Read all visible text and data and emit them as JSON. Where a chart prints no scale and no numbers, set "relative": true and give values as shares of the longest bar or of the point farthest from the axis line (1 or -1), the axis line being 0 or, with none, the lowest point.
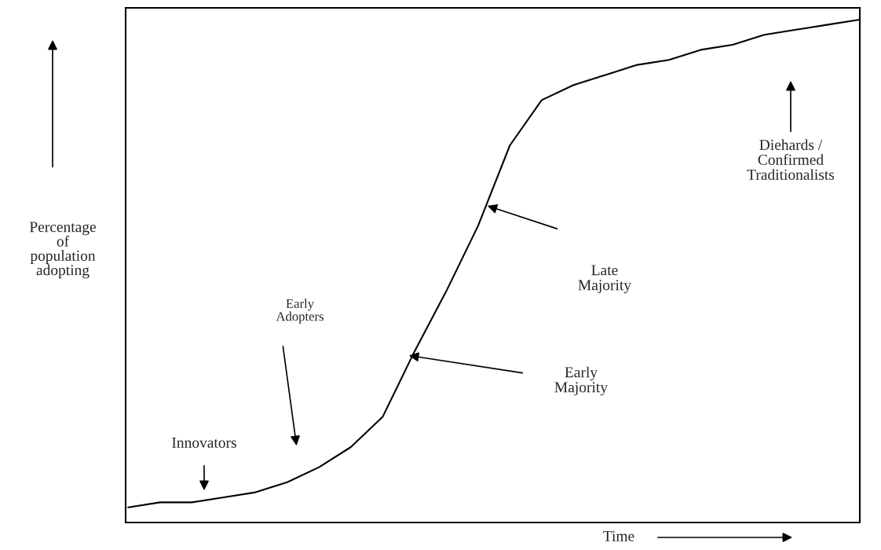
{
  "chart_data": {
    "type": "line",
    "relative": true,
    "xlabel": "Time",
    "ylabel": "Percentage\nof\npopulation\nadopting",
    "categories": [
      null,
      null,
      null,
      null,
      null,
      null,
      null,
      null,
      null,
      null,
      null,
      null,
      null,
      null,
      null,
      null,
      null,
      null,
      null,
      null,
      null,
      null,
      null,
      null
    ],
    "series": [
      {
        "color": "#000000",
        "values": [
          0.03,
          0.04,
          0.04,
          0.05,
          0.06,
          0.08,
          0.11,
          0.15,
          0.21,
          0.34,
          0.46,
          0.59,
          0.75,
          0.84,
          0.87,
          0.89,
          0.91,
          0.92,
          0.94,
          0.95,
          0.97,
          0.98,
          0.99,
          1.0
        ]
      }
    ],
    "annotations": [
      "Innovators",
      "Early\nAdopters",
      "Early\nMajority",
      "Late\nMajority",
      "Diehards /\nConfirmed\nTraditionalists"
    ],
    "grid": false,
    "legend": false,
    "marker": "none",
    "line_style": "solid"
  }
}
